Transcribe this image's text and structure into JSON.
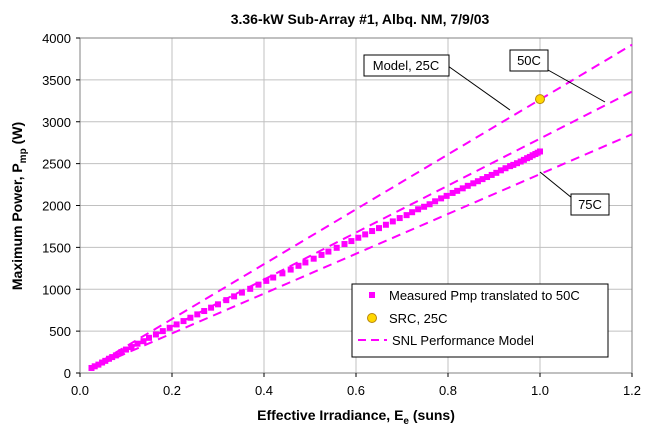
{
  "chart_data": {
    "type": "scatter",
    "title": "3.36-kW Sub-Array #1, Albq. NM, 7/9/03",
    "xlabel": {
      "main": "Effective Irradiance, E",
      "sub": "e",
      "suffix": " (suns)"
    },
    "ylabel": {
      "main": "Maximum Power, P",
      "sub": "mp",
      "suffix": " (W)"
    },
    "xlim": [
      0,
      1.2
    ],
    "ylim": [
      0,
      4000
    ],
    "x_ticks": [
      0,
      0.2,
      0.4,
      0.6,
      0.8,
      1,
      1.2
    ],
    "x_tick_labels": [
      "0.0",
      "0.2",
      "0.4",
      "0.6",
      "0.8",
      "1.0",
      "1.2"
    ],
    "y_ticks": [
      0,
      500,
      1000,
      1500,
      2000,
      2500,
      3000,
      3500,
      4000
    ],
    "y_tick_labels": [
      "0",
      "500",
      "1000",
      "1500",
      "2000",
      "2500",
      "3000",
      "3500",
      "4000"
    ],
    "grid": true,
    "legend_position": "bottom-right",
    "colors": {
      "measured": "#ff00ff",
      "src_fill": "#ffd700",
      "src_stroke": "#b8860b",
      "model": "#ff00ff",
      "grid": "#c0c0c0"
    },
    "series": [
      {
        "name": "Measured Pmp translated to 50C",
        "kind": "markers",
        "x": [
          0.025,
          0.032,
          0.04,
          0.048,
          0.055,
          0.063,
          0.07,
          0.078,
          0.09,
          0.1,
          0.112,
          0.125,
          0.138,
          0.15,
          0.165,
          0.18,
          0.195,
          0.21,
          0.225,
          0.24,
          0.255,
          0.27,
          0.285,
          0.3,
          0.318,
          0.335,
          0.352,
          0.37,
          0.388,
          0.405,
          0.42,
          0.44,
          0.458,
          0.475,
          0.49,
          0.508,
          0.525,
          0.54,
          0.558,
          0.575,
          0.59,
          0.605,
          0.62,
          0.635,
          0.65,
          0.665,
          0.68,
          0.695,
          0.71,
          0.722,
          0.735,
          0.748,
          0.76,
          0.772,
          0.785,
          0.797,
          0.81,
          0.82,
          0.832,
          0.843,
          0.855,
          0.865,
          0.875,
          0.885,
          0.895,
          0.905,
          0.915,
          0.925,
          0.935,
          0.942,
          0.95,
          0.958,
          0.965,
          0.972,
          0.978,
          0.984,
          0.99,
          0.995,
          1.0
        ],
        "y": [
          60,
          80,
          100,
          125,
          145,
          170,
          190,
          210,
          250,
          280,
          310,
          350,
          380,
          420,
          460,
          500,
          540,
          580,
          620,
          660,
          700,
          740,
          780,
          820,
          870,
          915,
          960,
          1005,
          1055,
          1100,
          1140,
          1190,
          1235,
          1280,
          1320,
          1365,
          1410,
          1450,
          1495,
          1540,
          1575,
          1615,
          1655,
          1695,
          1730,
          1770,
          1810,
          1850,
          1885,
          1920,
          1955,
          1985,
          2015,
          2050,
          2085,
          2115,
          2150,
          2175,
          2205,
          2235,
          2265,
          2290,
          2315,
          2340,
          2365,
          2390,
          2420,
          2445,
          2470,
          2485,
          2505,
          2525,
          2545,
          2565,
          2580,
          2600,
          2615,
          2630,
          2645
        ]
      },
      {
        "name": "SRC, 25C",
        "kind": "marker",
        "x": [
          1.0
        ],
        "y": [
          3270
        ]
      },
      {
        "name": "SNL Performance Model",
        "kind": "dashed-lines",
        "lines": [
          {
            "label": "Model, 25C",
            "x": [
              0.02,
              1.2
            ],
            "y": [
              55,
              3920
            ]
          },
          {
            "label": "50C",
            "x": [
              0.02,
              1.2
            ],
            "y": [
              50,
              3360
            ]
          },
          {
            "label": "75C",
            "x": [
              0.02,
              1.2
            ],
            "y": [
              45,
              2850
            ]
          }
        ]
      }
    ],
    "annotations": [
      {
        "text": "Model, 25C",
        "target_x": 0.955,
        "target_y": 3180
      },
      {
        "text": "50C",
        "target_x": 1.135,
        "target_y": 3185
      },
      {
        "text": "75C",
        "target_x": 1.03,
        "target_y": 2400
      }
    ]
  }
}
